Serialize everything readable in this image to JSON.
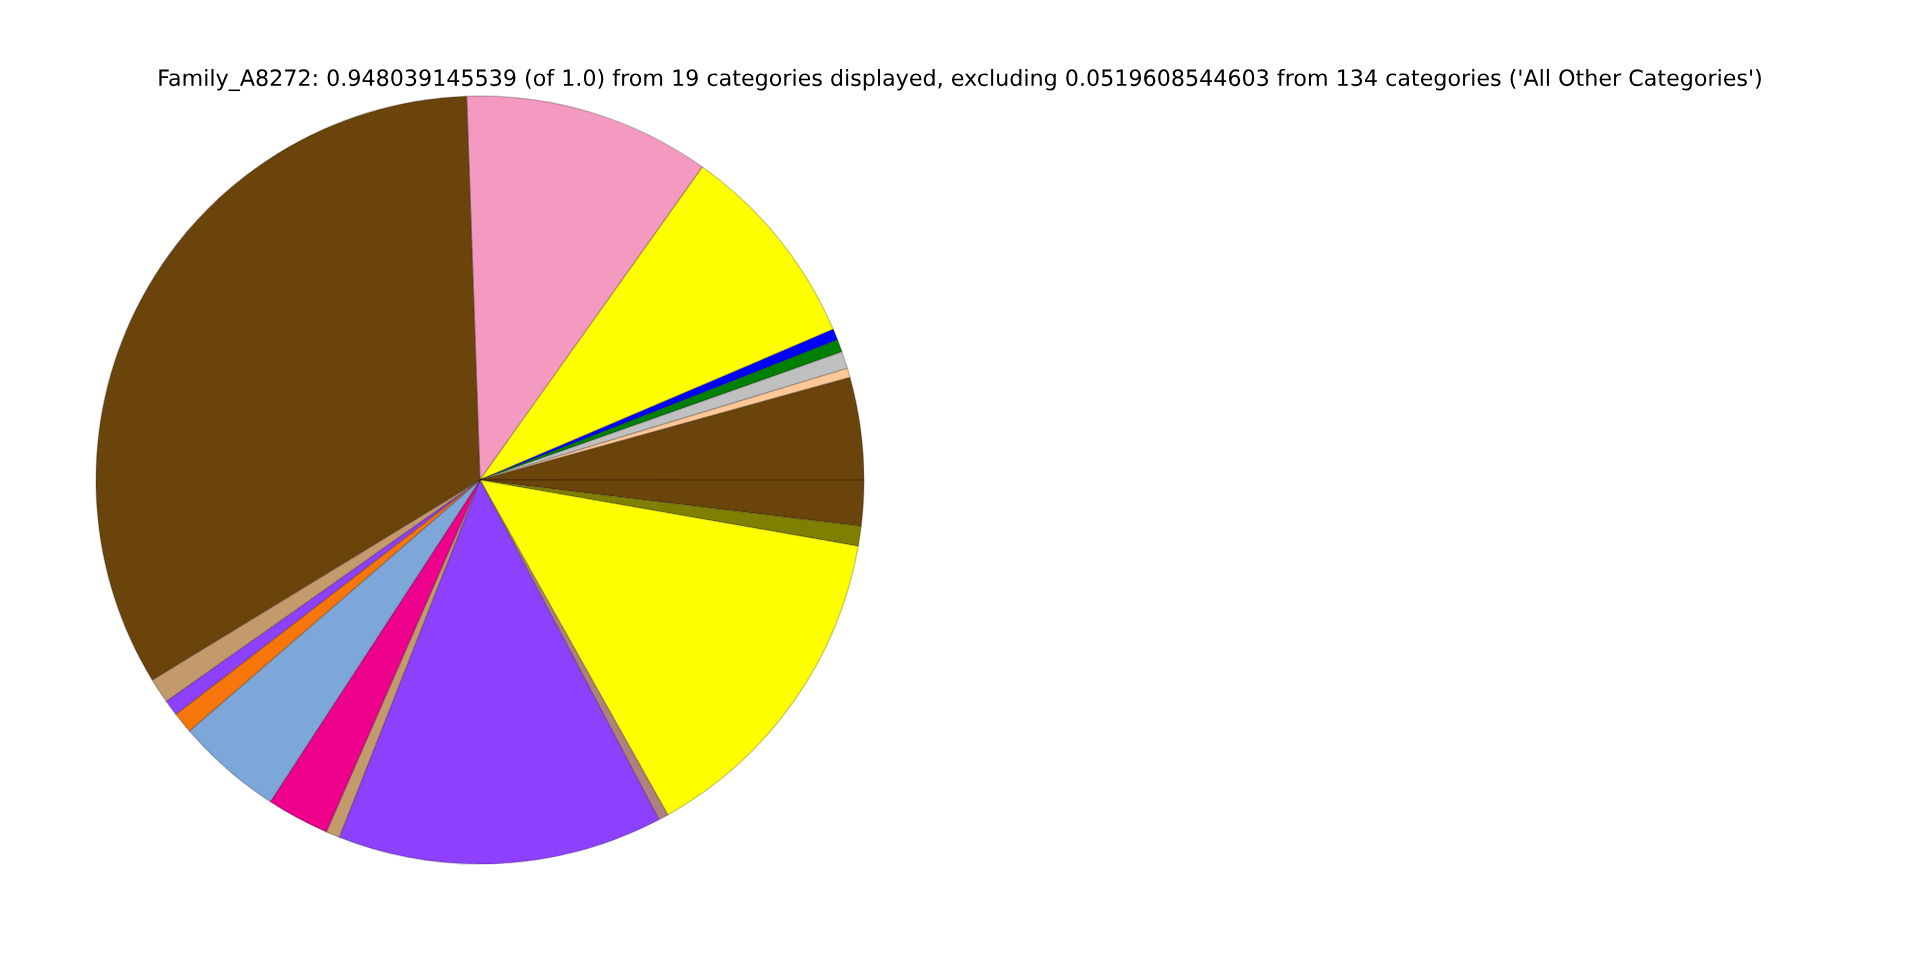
{
  "chart_data": {
    "type": "pie",
    "title": "Family_A8272: 0.948039145539 (of 1.0) from 19 categories displayed, excluding 0.0519608544603 from 134 categories ('All Other Categories')",
    "categories": [
      null,
      null,
      null,
      null,
      null,
      null,
      null,
      null,
      null,
      null,
      null,
      null,
      null,
      null,
      null,
      null,
      null,
      null,
      null
    ],
    "values": [
      10.39,
      8.75,
      0.47,
      0.53,
      0.72,
      0.39,
      4.31,
      1.92,
      0.83,
      14.11,
      0.42,
      13.69,
      0.58,
      2.64,
      4.47,
      0.89,
      0.67,
      1.06,
      33.16
    ],
    "colors": [
      "#f49ac1",
      "#ffff00",
      "#0000ff",
      "#008000",
      "#c0c0c0",
      "#ffc896",
      "#6b440b",
      "#6b440b",
      "#808000",
      "#ffff00",
      "#b08080",
      "#8e40ff",
      "#c49a6c",
      "#ec008c",
      "#7da7d9",
      "#f7760b",
      "#8e40ff",
      "#c49a6c",
      "#6b440b"
    ]
  }
}
